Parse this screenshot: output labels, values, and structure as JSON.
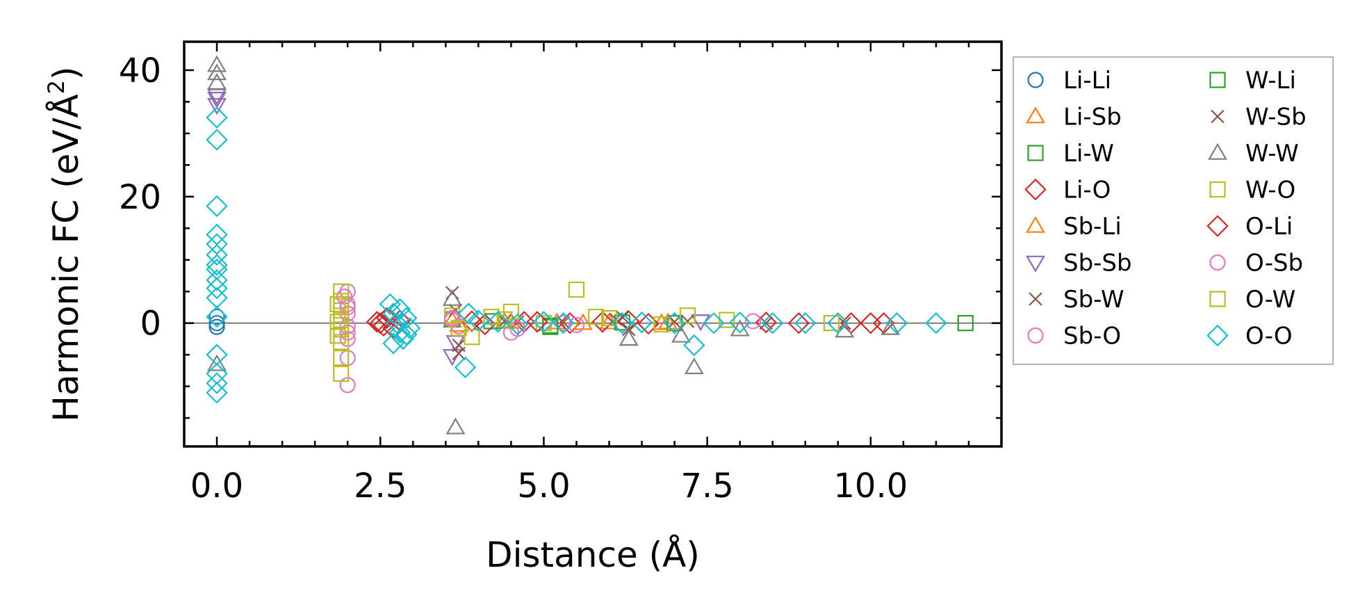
{
  "chart_data": {
    "type": "scatter",
    "title": "",
    "xlabel": "Distance (Å)",
    "ylabel": "Harmonic FC (eV/Å²)",
    "ylabel_main": "Harmonic FC (eV/Å",
    "ylabel_sup": "2",
    "ylabel_end": ")",
    "xlim": [
      -0.5,
      12.0
    ],
    "ylim": [
      -19.5,
      44.5
    ],
    "xticks": [
      0.0,
      2.5,
      5.0,
      7.5,
      10.0
    ],
    "xtick_labels": [
      "0.0",
      "2.5",
      "5.0",
      "7.5",
      "10.0"
    ],
    "yticks": [
      0,
      20,
      40
    ],
    "ytick_labels": [
      "0",
      "20",
      "40"
    ],
    "reference_line_y": 0,
    "legend_position": "outside-right",
    "series": [
      {
        "name": "Li-Li",
        "marker": "circle",
        "color": "#1f77b4",
        "x": [
          0.0,
          0.0,
          0.0
        ],
        "y": [
          1.0,
          0.0,
          -0.6
        ]
      },
      {
        "name": "Li-Sb",
        "marker": "triangle-up",
        "color": "#ff7f0e",
        "x": [
          3.6,
          4.4,
          5.2,
          6.0,
          6.8
        ],
        "y": [
          0.4,
          0.2,
          0.1,
          0.1,
          0.0
        ]
      },
      {
        "name": "Li-W",
        "marker": "square",
        "color": "#2ca02c",
        "x": [
          3.6,
          4.2,
          5.1,
          6.2,
          7.0
        ],
        "y": [
          0.6,
          0.3,
          -0.4,
          0.1,
          0.0
        ]
      },
      {
        "name": "Li-O",
        "marker": "diamond",
        "color": "#d62728",
        "x": [
          2.5,
          2.6,
          2.7,
          2.8,
          3.9,
          4.1,
          4.7,
          5.4,
          5.9,
          6.3,
          7.0,
          8.4,
          9.7,
          10.2
        ],
        "y": [
          0.0,
          0.8,
          -0.8,
          0.4,
          0.3,
          -0.2,
          0.2,
          0.0,
          0.2,
          0.3,
          0.0,
          0.1,
          0.0,
          0.0
        ]
      },
      {
        "name": "Sb-Li",
        "marker": "triangle-up",
        "color": "#ff7f0e",
        "x": [
          3.7,
          4.5,
          5.6,
          6.9
        ],
        "y": [
          -0.3,
          0.2,
          0.0,
          0.1
        ]
      },
      {
        "name": "Sb-Sb",
        "marker": "triangle-down",
        "color": "#9467bd",
        "x": [
          0.0,
          0.0,
          0.0,
          3.6,
          3.65,
          7.4
        ],
        "y": [
          35.5,
          34.5,
          36.0,
          -5.2,
          -3.0,
          0.3
        ]
      },
      {
        "name": "Sb-W",
        "marker": "x",
        "color": "#8c564b",
        "x": [
          3.6,
          3.65,
          3.7,
          3.7,
          4.6,
          5.3,
          6.1,
          6.3,
          7.2,
          8.4,
          9.6
        ],
        "y": [
          4.8,
          2.0,
          -3.5,
          -4.8,
          0.2,
          0.1,
          0.6,
          -1.0,
          0.3,
          0.0,
          0.0
        ]
      },
      {
        "name": "Sb-O",
        "marker": "circle",
        "color": "#e377c2",
        "x": [
          2.0,
          2.0,
          2.0,
          2.0,
          2.0,
          2.0,
          2.0,
          3.6,
          3.7,
          4.5,
          5.3,
          8.2
        ],
        "y": [
          5.0,
          3.0,
          1.5,
          -0.5,
          -2.5,
          -5.5,
          -9.8,
          0.8,
          -0.5,
          -1.5,
          0.0,
          0.3
        ]
      },
      {
        "name": "W-Li",
        "marker": "square",
        "color": "#2ca02c",
        "x": [
          5.1,
          11.45
        ],
        "y": [
          -0.6,
          0.0
        ]
      },
      {
        "name": "W-Sb",
        "marker": "x",
        "color": "#8c564b",
        "x": [
          4.4,
          6.2,
          7.0
        ],
        "y": [
          0.3,
          1.0,
          0.2
        ]
      },
      {
        "name": "W-W",
        "marker": "triangle-up",
        "color": "#7f7f7f",
        "x": [
          0.0,
          0.0,
          0.0,
          0.0,
          3.65,
          3.6,
          6.3,
          7.1,
          7.3,
          8.0,
          9.6,
          10.3
        ],
        "y": [
          40.8,
          39.5,
          38.0,
          -6.5,
          -16.5,
          3.8,
          -2.5,
          -2.0,
          -7.0,
          -1.0,
          -1.2,
          -0.8
        ]
      },
      {
        "name": "W-O",
        "marker": "square",
        "color": "#bcbd22",
        "x": [
          1.9,
          1.9,
          1.9,
          1.9,
          1.9,
          1.9,
          1.9,
          1.9,
          3.6,
          3.9,
          4.2,
          4.5,
          5.0,
          5.5,
          6.0,
          7.2,
          7.8,
          9.4
        ],
        "y": [
          5.0,
          3.5,
          2.0,
          0.5,
          -1.0,
          -3.0,
          -5.5,
          -8.0,
          1.2,
          -2.2,
          1.0,
          1.8,
          0.0,
          5.3,
          0.8,
          1.2,
          0.5,
          0.0
        ]
      },
      {
        "name": "O-Li",
        "marker": "diamond",
        "color": "#d62728",
        "x": [
          2.45,
          2.55,
          4.9,
          6.6,
          8.9,
          10.0
        ],
        "y": [
          0.2,
          -0.4,
          0.2,
          -0.1,
          0.0,
          0.0
        ]
      },
      {
        "name": "O-Sb",
        "marker": "circle",
        "color": "#e377c2",
        "x": [
          1.95,
          2.0,
          2.0,
          3.6,
          4.6,
          5.5
        ],
        "y": [
          4.2,
          2.5,
          -1.5,
          0.5,
          -0.9,
          -0.3
        ]
      },
      {
        "name": "O-W",
        "marker": "square",
        "color": "#bcbd22",
        "x": [
          1.85,
          1.85,
          1.85,
          3.7,
          4.4,
          5.8,
          6.8
        ],
        "y": [
          0.2,
          -2.0,
          3.0,
          -0.8,
          0.6,
          1.0,
          -0.2
        ]
      },
      {
        "name": "O-O",
        "marker": "diamond",
        "color": "#17becf",
        "x": [
          0.0,
          0.0,
          0.0,
          0.0,
          0.0,
          0.0,
          0.0,
          0.0,
          0.0,
          0.0,
          0.0,
          0.0,
          0.0,
          0.0,
          0.0,
          0.0,
          2.65,
          2.7,
          2.75,
          2.8,
          2.85,
          2.9,
          2.95,
          2.7,
          2.8,
          2.9,
          3.8,
          3.85,
          4.0,
          4.3,
          4.6,
          5.0,
          5.3,
          6.2,
          6.5,
          7.0,
          7.3,
          7.6,
          8.0,
          8.5,
          9.0,
          9.5,
          10.4,
          11.0
        ],
        "y": [
          32.5,
          29.0,
          18.5,
          14.0,
          12.5,
          10.8,
          9.2,
          8.5,
          6.8,
          5.5,
          4.0,
          1.0,
          -5.0,
          -8.0,
          -9.5,
          -11.0,
          3.0,
          1.5,
          0.0,
          -1.5,
          -2.5,
          0.8,
          -0.8,
          -3.2,
          2.2,
          -1.8,
          -7.0,
          1.5,
          0.4,
          0.2,
          -0.2,
          0.2,
          0.0,
          0.0,
          0.1,
          0.0,
          -3.5,
          0.0,
          0.1,
          0.0,
          0.0,
          0.0,
          0.0,
          0.0
        ]
      }
    ]
  }
}
